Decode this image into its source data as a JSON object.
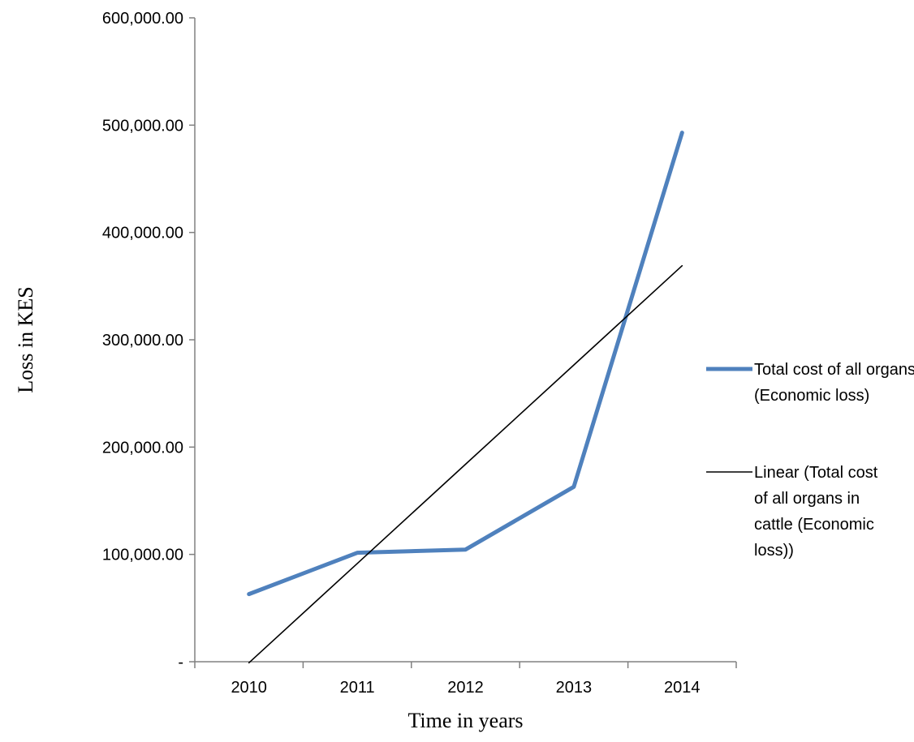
{
  "chart_data": {
    "type": "line",
    "title": "",
    "xlabel": "Time in years",
    "ylabel": "Loss in KES",
    "categories": [
      "2010",
      "2011",
      "2012",
      "2013",
      "2014"
    ],
    "ylim": [
      0,
      600000
    ],
    "y_ticks": [
      0,
      100000,
      200000,
      300000,
      400000,
      500000,
      600000
    ],
    "y_tick_labels": [
      "-",
      "100,000.00",
      "200,000.00",
      "300,000.00",
      "400,000.00",
      "500,000.00",
      "600,000.00"
    ],
    "grid": false,
    "legend_position": "right",
    "series": [
      {
        "name": "Total cost of all organs in cattle (Economic loss)",
        "legend_lines": [
          "Total cost of all organs in cattle",
          "(Economic loss)"
        ],
        "values": [
          63000,
          101500,
          104500,
          163000,
          493000
        ],
        "color": "#4F81BD",
        "style": "thick"
      },
      {
        "name": "Linear (Total cost of all organs in cattle (Economic loss))",
        "legend_lines": [
          "Linear (Total cost",
          "of all organs in",
          "cattle (Economic",
          "loss))"
        ],
        "values": [
          -1000,
          91500,
          184000,
          276500,
          369000
        ],
        "color": "#000000",
        "style": "thin"
      }
    ]
  }
}
